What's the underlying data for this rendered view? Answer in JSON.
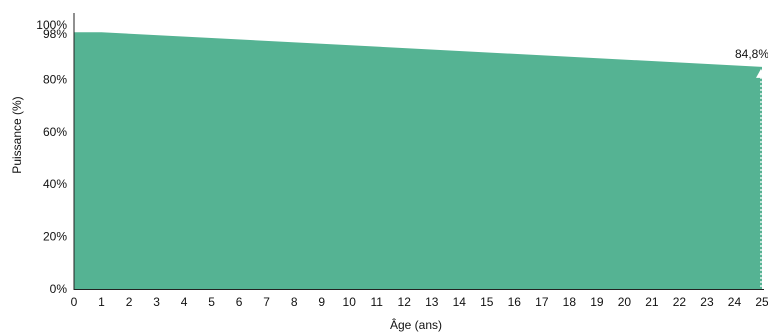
{
  "chart_data": {
    "type": "area",
    "xlabel": "Âge (ans)",
    "ylabel": "Puissance (%)",
    "x_ticks": [
      0,
      1,
      2,
      3,
      4,
      5,
      6,
      7,
      8,
      9,
      10,
      11,
      12,
      13,
      14,
      15,
      16,
      17,
      18,
      19,
      20,
      21,
      22,
      23,
      24,
      25
    ],
    "y_ticks": [
      {
        "value": 0,
        "label": "0%"
      },
      {
        "value": 20,
        "label": "20%"
      },
      {
        "value": 40,
        "label": "40%"
      },
      {
        "value": 60,
        "label": "60%"
      },
      {
        "value": 80,
        "label": "80%"
      },
      {
        "value": 98,
        "label": "98%"
      },
      {
        "value": 100,
        "label": "100%"
      }
    ],
    "xlim": [
      0,
      25
    ],
    "ylim": [
      0,
      100
    ],
    "series": [
      {
        "x": [
          0,
          1,
          25
        ],
        "values": [
          98,
          98,
          84.8
        ],
        "color": "#55b393"
      }
    ],
    "annotation": {
      "x": 25,
      "y": 84.8,
      "label": "84,8%"
    }
  }
}
